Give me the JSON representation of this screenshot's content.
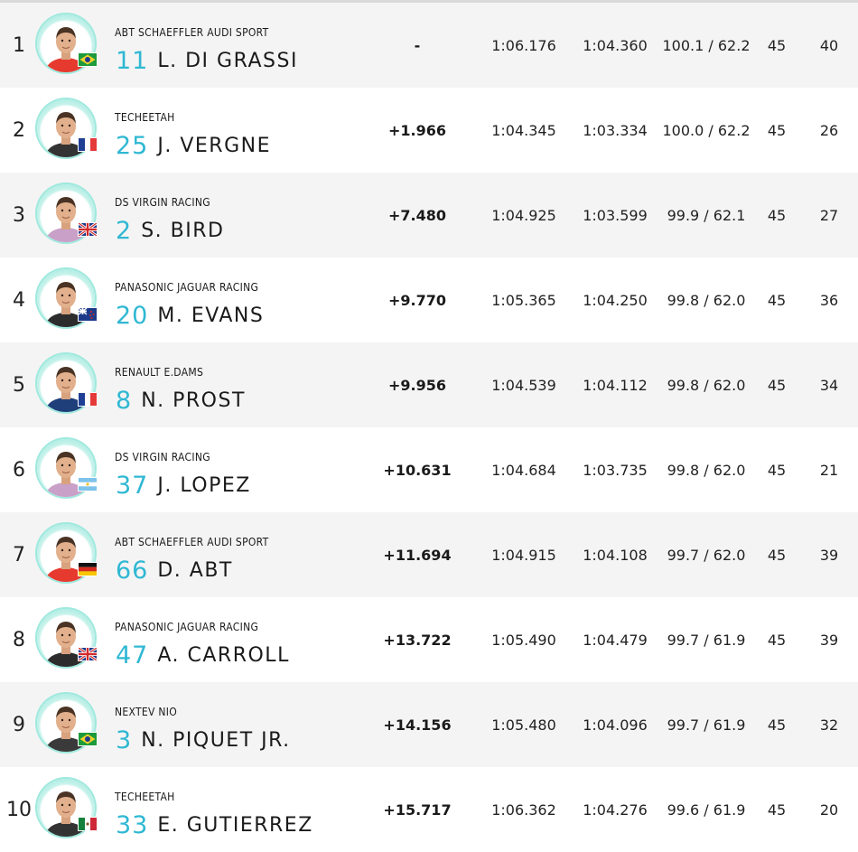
{
  "results": [
    {
      "pos": "1",
      "team": "ABT SCHAEFFLER AUDI SPORT",
      "number": "11",
      "driver": "L. DI GRASSI",
      "gap": "-",
      "best_lap": "1:06.176",
      "lap2": "1:04.360",
      "speed": "100.1 / 62.2",
      "laps": "45",
      "pts": "40",
      "flag": "BR",
      "helmet": "#e63a2e"
    },
    {
      "pos": "2",
      "team": "TECHEETAH",
      "number": "25",
      "driver": "J. VERGNE",
      "gap": "+1.966",
      "best_lap": "1:04.345",
      "lap2": "1:03.334",
      "speed": "100.0 / 62.2",
      "laps": "45",
      "pts": "26",
      "flag": "FR",
      "helmet": "#333333"
    },
    {
      "pos": "3",
      "team": "DS VIRGIN RACING",
      "number": "2",
      "driver": "S. BIRD",
      "gap": "+7.480",
      "best_lap": "1:04.925",
      "lap2": "1:03.599",
      "speed": "99.9 / 62.1",
      "laps": "45",
      "pts": "27",
      "flag": "GB",
      "helmet": "#c9a0c8"
    },
    {
      "pos": "4",
      "team": "PANASONIC JAGUAR RACING",
      "number": "20",
      "driver": "M. EVANS",
      "gap": "+9.770",
      "best_lap": "1:05.365",
      "lap2": "1:04.250",
      "speed": "99.8 / 62.0",
      "laps": "45",
      "pts": "36",
      "flag": "NZ",
      "helmet": "#2c2c2c"
    },
    {
      "pos": "5",
      "team": "RENAULT E.DAMS",
      "number": "8",
      "driver": "N. PROST",
      "gap": "+9.956",
      "best_lap": "1:04.539",
      "lap2": "1:04.112",
      "speed": "99.8 / 62.0",
      "laps": "45",
      "pts": "34",
      "flag": "FR",
      "helmet": "#1f3f7a"
    },
    {
      "pos": "6",
      "team": "DS VIRGIN RACING",
      "number": "37",
      "driver": "J. LOPEZ",
      "gap": "+10.631",
      "best_lap": "1:04.684",
      "lap2": "1:03.735",
      "speed": "99.8 / 62.0",
      "laps": "45",
      "pts": "21",
      "flag": "AR",
      "helmet": "#c9a0c8"
    },
    {
      "pos": "7",
      "team": "ABT SCHAEFFLER AUDI SPORT",
      "number": "66",
      "driver": "D. ABT",
      "gap": "+11.694",
      "best_lap": "1:04.915",
      "lap2": "1:04.108",
      "speed": "99.7 / 62.0",
      "laps": "45",
      "pts": "39",
      "flag": "DE",
      "helmet": "#e63a2e"
    },
    {
      "pos": "8",
      "team": "PANASONIC JAGUAR RACING",
      "number": "47",
      "driver": "A. CARROLL",
      "gap": "+13.722",
      "best_lap": "1:05.490",
      "lap2": "1:04.479",
      "speed": "99.7 / 61.9",
      "laps": "45",
      "pts": "39",
      "flag": "GB",
      "helmet": "#2c2c2c"
    },
    {
      "pos": "9",
      "team": "NEXTEV NIO",
      "number": "3",
      "driver": "N. PIQUET JR.",
      "gap": "+14.156",
      "best_lap": "1:05.480",
      "lap2": "1:04.096",
      "speed": "99.7 / 61.9",
      "laps": "45",
      "pts": "32",
      "flag": "BR",
      "helmet": "#3a3a3a"
    },
    {
      "pos": "10",
      "team": "TECHEETAH",
      "number": "33",
      "driver": "E. GUTIERREZ",
      "gap": "+15.717",
      "best_lap": "1:06.362",
      "lap2": "1:04.276",
      "speed": "99.6 / 61.9",
      "laps": "45",
      "pts": "20",
      "flag": "MX",
      "helmet": "#333333"
    }
  ]
}
